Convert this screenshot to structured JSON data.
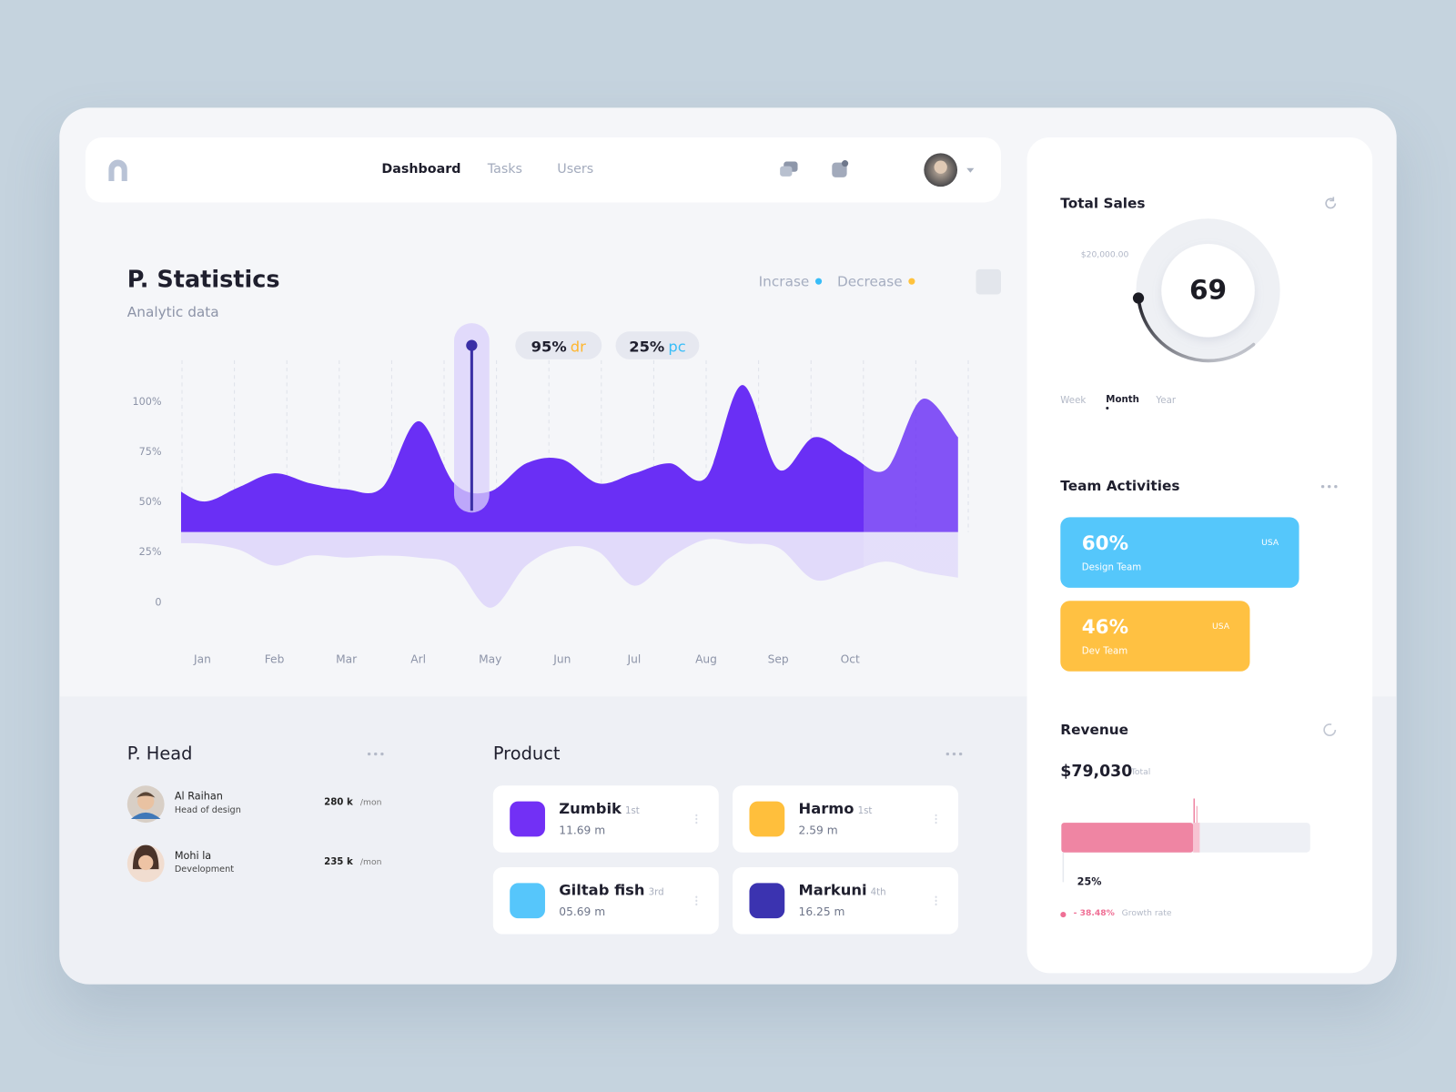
{
  "nav": {
    "items": [
      "Dashboard",
      "Tasks",
      "Users"
    ]
  },
  "chart_data": {
    "type": "area",
    "title": "P. Statistics",
    "subtitle": "Analytic data",
    "categories": [
      null,
      "Jan",
      null,
      "Feb",
      null,
      "Mar",
      null,
      "Arl",
      null,
      "May",
      null,
      "Jun",
      null,
      "Jul",
      null,
      "Aug",
      null,
      "Sep",
      null,
      "Oct",
      null,
      null,
      null
    ],
    "series": [
      {
        "name": "Incrase",
        "color": "#6a2ff5",
        "marker_color": "#38bdf8",
        "values": [
          60,
          50,
          57,
          64,
          59,
          56,
          57,
          90,
          59,
          55,
          69,
          71,
          59,
          64,
          69,
          62,
          108,
          66,
          82,
          73,
          66,
          101,
          82
        ]
      },
      {
        "name": "Decrease",
        "color": "#e1dafa",
        "marker_color": "#ffc23d",
        "values": [
          29,
          29,
          26,
          18,
          23,
          22,
          23,
          22,
          18,
          -3,
          18,
          27,
          25,
          8,
          22,
          31,
          29,
          27,
          11,
          15,
          20,
          15,
          12
        ]
      }
    ],
    "ylim": [
      -10,
      120
    ],
    "yticks": [
      0,
      {
        "value": 25,
        "label": "25%"
      },
      {
        "value": 50,
        "label": "50%"
      },
      {
        "value": 75,
        "label": "75%"
      },
      {
        "value": 100,
        "label": "100%"
      }
    ],
    "annotations": [
      {
        "text": "95%",
        "suffix": "dr"
      },
      {
        "text": "25%",
        "suffix": "pc"
      }
    ]
  },
  "total_sales": {
    "title": "Total Sales",
    "target": "$20,000.00",
    "value": 69,
    "periods": [
      "Week",
      "Month",
      "Year"
    ]
  },
  "team_activities": {
    "title": "Team Activities",
    "teams": [
      {
        "percent": "60%",
        "name": "Design Team",
        "region": "USA"
      },
      {
        "percent": "46%",
        "name": "Dev Team",
        "region": "USA"
      }
    ]
  },
  "revenue": {
    "title": "Revenue",
    "amount": "$79,030",
    "amount_label": "Total",
    "share": "25%",
    "growth": "- 38.48%",
    "growth_label": "Growth rate"
  },
  "p_head": {
    "title": "P. Head",
    "people": [
      {
        "name": "Al Raihan",
        "role": "Head of design",
        "amount": "280 k",
        "unit": "/mon"
      },
      {
        "name": "Mohi la",
        "role": "Development",
        "amount": "235 k",
        "unit": "/mon"
      }
    ]
  },
  "product": {
    "title": "Product",
    "items": [
      {
        "name": "Zumbik",
        "rank": "1st",
        "value": "11.69 m"
      },
      {
        "name": "Harmo",
        "rank": "1st",
        "value": "2.59 m"
      },
      {
        "name": "Giltab fish",
        "rank": "3rd",
        "value": "05.69 m"
      },
      {
        "name": "Markuni",
        "rank": "4th",
        "value": "16.25 m"
      }
    ]
  }
}
